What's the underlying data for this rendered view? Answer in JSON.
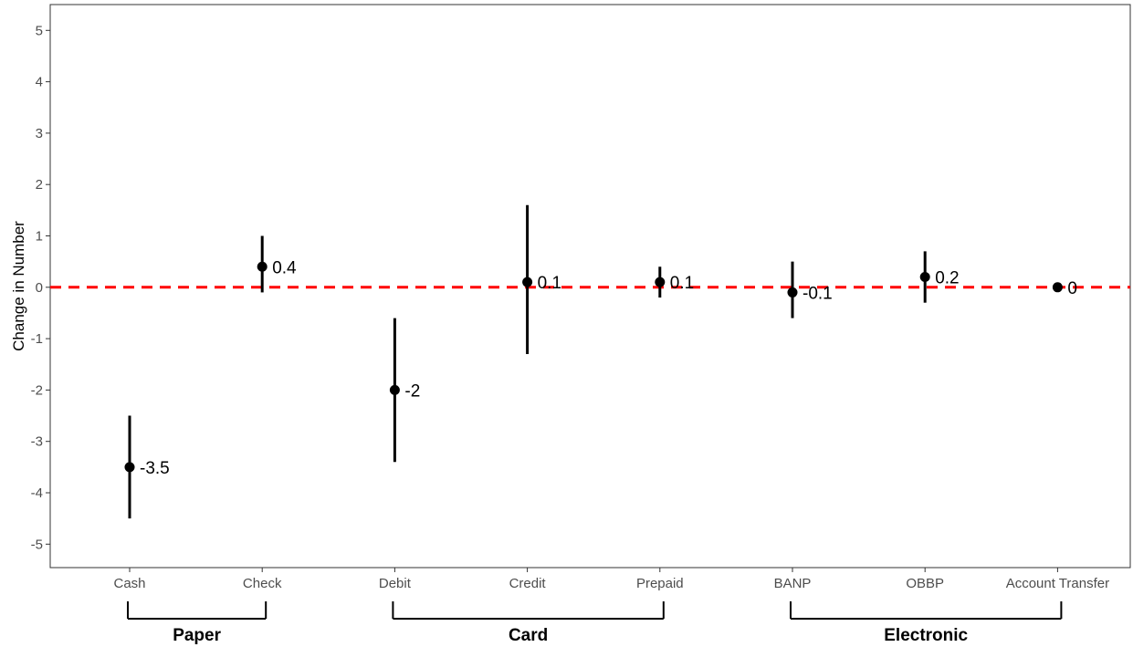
{
  "chart_data": {
    "type": "scatter",
    "ylabel": "Change in Number",
    "xlabel": "",
    "ylim": [
      -5.5,
      5.5
    ],
    "y_ticks": [
      -5,
      -4,
      -3,
      -2,
      -1,
      0,
      1,
      2,
      3,
      4,
      5
    ],
    "categories": [
      "Cash",
      "Check",
      "Debit",
      "Credit",
      "Prepaid",
      "BANP",
      "OBBP",
      "Account Transfer"
    ],
    "points": [
      {
        "category": "Cash",
        "value": -3.5,
        "lower": -4.5,
        "upper": -2.5,
        "label": "-3.5"
      },
      {
        "category": "Check",
        "value": 0.4,
        "lower": -0.1,
        "upper": 1.0,
        "label": "0.4"
      },
      {
        "category": "Debit",
        "value": -2.0,
        "lower": -3.4,
        "upper": -0.6,
        "label": "-2"
      },
      {
        "category": "Credit",
        "value": 0.1,
        "lower": -1.3,
        "upper": 1.6,
        "label": "0.1"
      },
      {
        "category": "Prepaid",
        "value": 0.1,
        "lower": -0.2,
        "upper": 0.4,
        "label": "0.1"
      },
      {
        "category": "BANP",
        "value": -0.1,
        "lower": -0.6,
        "upper": 0.5,
        "label": "-0.1"
      },
      {
        "category": "OBBP",
        "value": 0.2,
        "lower": -0.3,
        "upper": 0.7,
        "label": "0.2"
      },
      {
        "category": "Account Transfer",
        "value": 0.0,
        "lower": 0.0,
        "upper": 0.0,
        "label": "0"
      }
    ],
    "reference_line": {
      "value": 0,
      "color": "#ff0000",
      "style": "dashed"
    },
    "groups": [
      {
        "label": "Paper",
        "from": "Cash",
        "to": "Check"
      },
      {
        "label": "Card",
        "from": "Debit",
        "to": "Prepaid"
      },
      {
        "label": "Electronic",
        "from": "BANP",
        "to": "Account Transfer"
      }
    ],
    "grid": false,
    "point_color": "#000000"
  }
}
